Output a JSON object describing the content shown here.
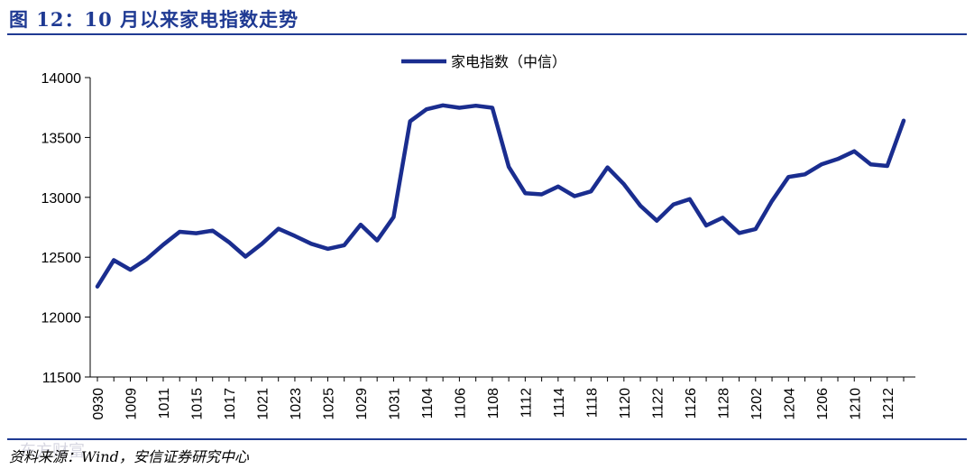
{
  "header": {
    "title": "图 12：10 月以来家电指数走势"
  },
  "footer": {
    "source": "资料来源：Wind，安信证券研究中心",
    "watermark": "东方财富"
  },
  "colors": {
    "accent": "#1f3a93",
    "series": "#1a2d8f"
  },
  "chart_data": {
    "type": "line",
    "title": "",
    "xlabel": "",
    "ylabel": "",
    "ylim": [
      11500,
      14000
    ],
    "yticks": [
      11500,
      12000,
      12500,
      13000,
      13500,
      14000
    ],
    "legend_position": "top-center",
    "grid": false,
    "x_tick_labels": [
      "0930",
      "1009",
      "1011",
      "1015",
      "1017",
      "1021",
      "1023",
      "1025",
      "1029",
      "1031",
      "1104",
      "1106",
      "1108",
      "1112",
      "1114",
      "1118",
      "1120",
      "1122",
      "1126",
      "1128",
      "1202",
      "1204",
      "1206",
      "1210",
      "1212"
    ],
    "series": [
      {
        "name": "家电指数（中信）",
        "values": [
          12255,
          12475,
          12395,
          12485,
          12605,
          12712,
          12700,
          12722,
          12625,
          12505,
          12612,
          12738,
          12678,
          12612,
          12570,
          12600,
          12772,
          12640,
          12835,
          13635,
          13735,
          13768,
          13748,
          13765,
          13748,
          13255,
          13035,
          13025,
          13090,
          13010,
          13050,
          13250,
          13110,
          12930,
          12805,
          12940,
          12985,
          12765,
          12830,
          12702,
          12735,
          12970,
          13170,
          13192,
          13275,
          13320,
          13385,
          13275,
          13262,
          13640
        ]
      }
    ]
  }
}
